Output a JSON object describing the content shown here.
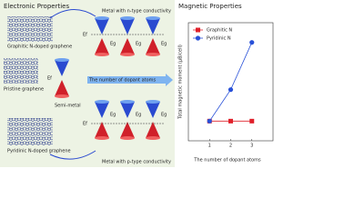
{
  "left_panel": {
    "title": "Electronic Properties",
    "n_type": "Metal with n-type conductivity",
    "graphitic": "Graphitic N-doped graphene",
    "pristine": "Pristine graphene",
    "semi_metal": "Semi-metal",
    "arrow": "The number of dopant atoms",
    "pyridinic": "Pyridinic N-doped graphene",
    "p_type": "Metal with p-type conductivity",
    "ef": "Ef",
    "eg": "Eg"
  },
  "chart_data": {
    "type": "line",
    "title": "Magnetic Properties",
    "x_label": "The number of dopant atoms",
    "y_label": "Total magnetic moment (μB/cell)",
    "x": [
      1,
      2,
      3
    ],
    "xlim": [
      0,
      4
    ],
    "xticks": [
      1,
      2,
      3
    ],
    "ylim": [
      -0.1,
      0.5
    ],
    "legend": "upper left",
    "series": [
      {
        "name": "Graphitic N",
        "color": "#e0202a",
        "marker": "square",
        "values": [
          0,
          0,
          0
        ]
      },
      {
        "name": "Pyridinic N",
        "color": "#2850d8",
        "marker": "circle",
        "values": [
          0,
          0.16,
          0.4
        ]
      }
    ]
  }
}
